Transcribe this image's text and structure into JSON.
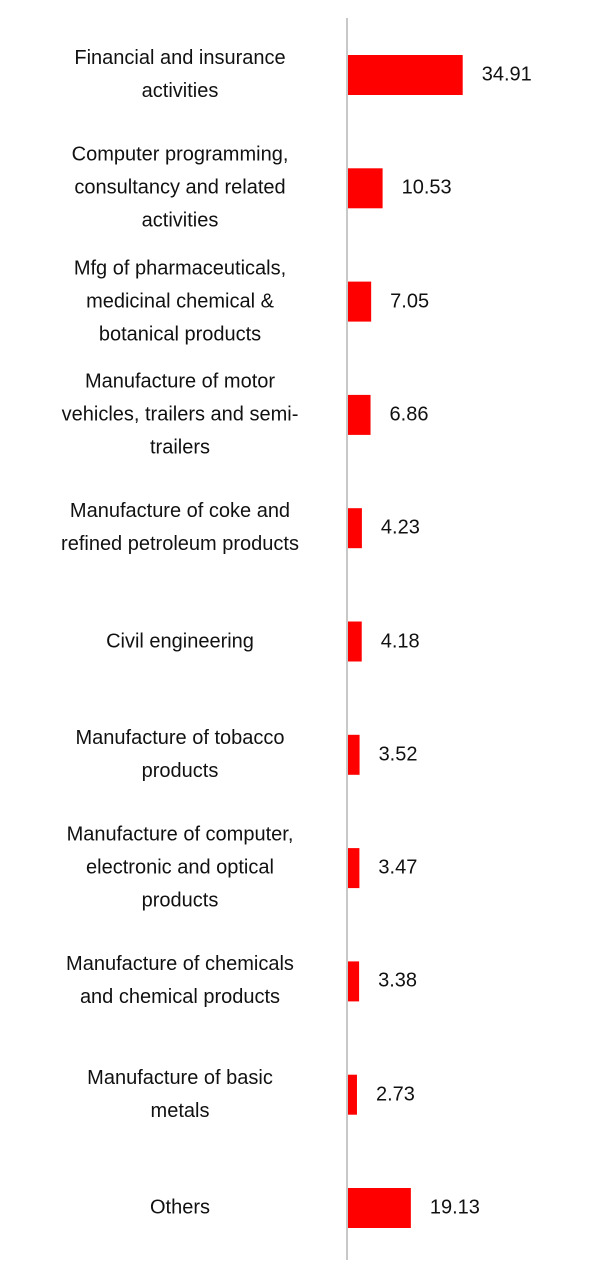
{
  "chart_data": {
    "type": "bar",
    "orientation": "horizontal",
    "categories": [
      [
        "Financial and insurance",
        "activities"
      ],
      [
        "Computer programming,",
        "consultancy and related",
        "activities"
      ],
      [
        "Mfg of pharmaceuticals,",
        "medicinal chemical &",
        "botanical products"
      ],
      [
        "Manufacture of motor",
        "vehicles, trailers and semi-",
        "trailers"
      ],
      [
        "Manufacture of coke and",
        "refined petroleum products"
      ],
      [
        "Civil engineering"
      ],
      [
        "Manufacture of tobacco",
        "products"
      ],
      [
        "Manufacture of computer,",
        "electronic and optical",
        "products"
      ],
      [
        "Manufacture of chemicals",
        "and chemical products"
      ],
      [
        "Manufacture of basic",
        "metals"
      ],
      [
        "Others"
      ]
    ],
    "values": [
      34.91,
      10.53,
      7.05,
      6.86,
      4.23,
      4.18,
      3.52,
      3.47,
      3.38,
      2.73,
      19.13
    ],
    "value_labels": [
      "34.91",
      "10.53",
      "7.05",
      "6.86",
      "4.23",
      "4.18",
      "3.52",
      "3.47",
      "3.38",
      "2.73",
      "19.13"
    ],
    "bar_color": "#ff0000",
    "axis_color": "#c8c8c8",
    "xlim": [
      0,
      35
    ],
    "grid": false,
    "legend": "none",
    "data_labels": "outside-end"
  }
}
